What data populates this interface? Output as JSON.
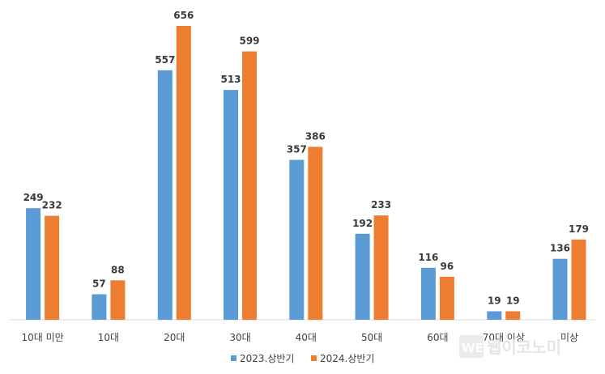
{
  "chart_data": {
    "type": "bar",
    "categories": [
      "10대 미만",
      "10대",
      "20대",
      "30대",
      "40대",
      "50대",
      "60대",
      "70대 이상",
      "미상"
    ],
    "series": [
      {
        "name": "2023.상반기",
        "color": "#5b9bd5",
        "values": [
          249,
          57,
          557,
          513,
          357,
          192,
          116,
          19,
          136
        ]
      },
      {
        "name": "2024.상반기",
        "color": "#ed7d31",
        "values": [
          232,
          88,
          656,
          599,
          386,
          233,
          96,
          19,
          179
        ]
      }
    ],
    "title": "",
    "xlabel": "",
    "ylabel": "",
    "ylim": [
      0,
      700
    ],
    "grid": false,
    "legend_position": "bottom"
  },
  "watermark": {
    "badge": "WE",
    "text": "웹이코노미"
  }
}
